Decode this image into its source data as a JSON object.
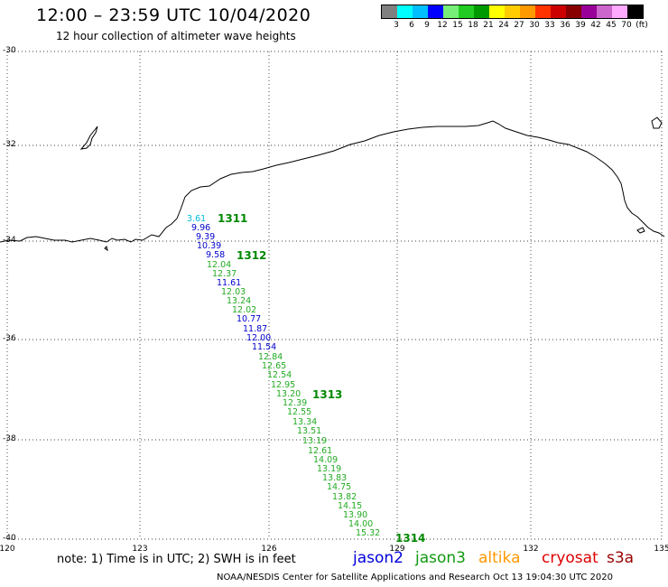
{
  "header": {
    "title": "12:00 – 23:59 UTC 10/04/2020",
    "subtitle": "12 hour collection of altimeter wave heights"
  },
  "color_scale": {
    "colors": [
      "#808080",
      "#00ffff",
      "#00bfff",
      "#0000ff",
      "#77ee77",
      "#22cc22",
      "#009900",
      "#ffff00",
      "#ffcc00",
      "#ff9900",
      "#ff3300",
      "#cc0000",
      "#880000",
      "#990099",
      "#cc66cc",
      "#ffaaff",
      "#000000"
    ],
    "labels": [
      "3",
      "6",
      "9",
      "12",
      "15",
      "18",
      "21",
      "24",
      "27",
      "30",
      "33",
      "36",
      "39",
      "42",
      "45",
      "70",
      "(ft)"
    ]
  },
  "axes": {
    "lat_labels": [
      "-30",
      "-32",
      "-34",
      "-36",
      "-38",
      "-40"
    ],
    "lon_labels": [
      "120",
      "123",
      "126",
      "129",
      "132",
      "135"
    ]
  },
  "coastline_ref": "southern-australia-coast",
  "pass_colors": {
    "jason2": "#0000cc",
    "jason3": "#22aa22",
    "cyan": "#00bbdd",
    "label": "#008800"
  },
  "passes": [
    {
      "label": "1311"
    },
    {
      "label": "1312"
    },
    {
      "label": "1313"
    },
    {
      "label": "1314"
    }
  ],
  "swh_values": [
    {
      "text": "3.61",
      "sat": "cyan"
    },
    {
      "text": "9.96",
      "sat": "jason2"
    },
    {
      "text": "9.39",
      "sat": "jason2"
    },
    {
      "text": "10.39",
      "sat": "jason2"
    },
    {
      "text": "9.58",
      "sat": "jason2"
    },
    {
      "text": "12.04",
      "sat": "jason3"
    },
    {
      "text": "12.37",
      "sat": "jason3"
    },
    {
      "text": "11.61",
      "sat": "jason2"
    },
    {
      "text": "12.03",
      "sat": "jason3"
    },
    {
      "text": "13.24",
      "sat": "jason3"
    },
    {
      "text": "12.02",
      "sat": "jason3"
    },
    {
      "text": "10.77",
      "sat": "jason2"
    },
    {
      "text": "11.87",
      "sat": "jason2"
    },
    {
      "text": "12.00",
      "sat": "jason2"
    },
    {
      "text": "11.54",
      "sat": "jason2"
    },
    {
      "text": "12.84",
      "sat": "jason3"
    },
    {
      "text": "12.65",
      "sat": "jason3"
    },
    {
      "text": "12.54",
      "sat": "jason3"
    },
    {
      "text": "12.95",
      "sat": "jason3"
    },
    {
      "text": "13.20",
      "sat": "jason3"
    },
    {
      "text": "12.39",
      "sat": "jason3"
    },
    {
      "text": "12.55",
      "sat": "jason3"
    },
    {
      "text": "13.34",
      "sat": "jason3"
    },
    {
      "text": "13.51",
      "sat": "jason3"
    },
    {
      "text": "13.19",
      "sat": "jason3"
    },
    {
      "text": "12.61",
      "sat": "jason3"
    },
    {
      "text": "14.09",
      "sat": "jason3"
    },
    {
      "text": "13.19",
      "sat": "jason3"
    },
    {
      "text": "13.83",
      "sat": "jason3"
    },
    {
      "text": "14.75",
      "sat": "jason3"
    },
    {
      "text": "13.82",
      "sat": "jason3"
    },
    {
      "text": "14.15",
      "sat": "jason3"
    },
    {
      "text": "13.90",
      "sat": "jason3"
    },
    {
      "text": "14.00",
      "sat": "jason3"
    },
    {
      "text": "15.32",
      "sat": "jason3"
    }
  ],
  "note": "note:  1) Time is in UTC;  2) SWH is in feet",
  "legend": [
    {
      "name": "jason2",
      "color": "#0000dd"
    },
    {
      "name": "jason3",
      "color": "#119911"
    },
    {
      "name": "altika",
      "color": "#ff9900"
    },
    {
      "name": "cryosat",
      "color": "#dd0000"
    },
    {
      "name": "s3a",
      "color": "#990000"
    }
  ],
  "credit": "NOAA/NESDIS Center for Satellite Applications and Research     Oct 13 19:04:30 UTC 2020"
}
